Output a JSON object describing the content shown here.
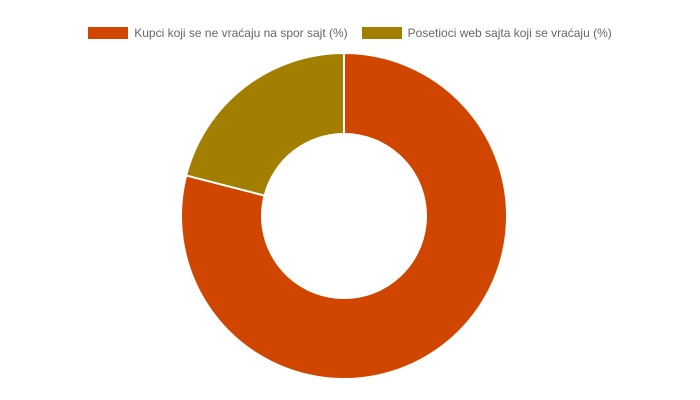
{
  "chart_data": {
    "type": "doughnut",
    "title": "",
    "series": [
      {
        "name": "Kupci koji se ne vraćaju na spor sajt (%)",
        "value": 79,
        "color": "#d04500"
      },
      {
        "name": "Posetioci web sajta koji se vraćaju (%)",
        "value": 21,
        "color": "#a37f00"
      }
    ],
    "legend_position": "top"
  }
}
